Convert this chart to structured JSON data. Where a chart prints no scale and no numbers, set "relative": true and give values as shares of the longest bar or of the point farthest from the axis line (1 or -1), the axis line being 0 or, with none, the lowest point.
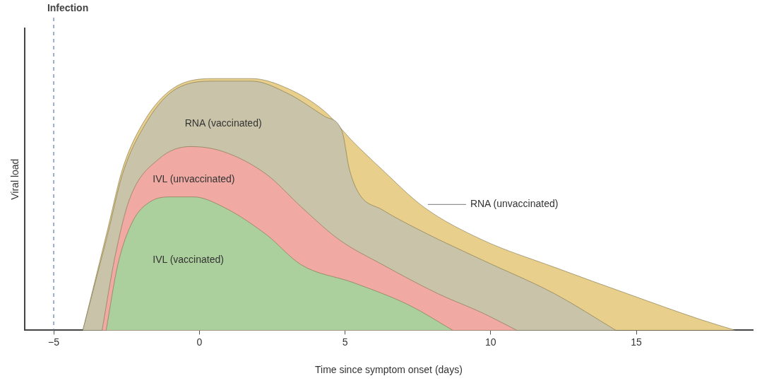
{
  "chart_data": {
    "type": "area",
    "xlabel": "Time since symptom onset (days)",
    "ylabel": "Viral load",
    "relative": true,
    "xlim": [
      -6,
      19
    ],
    "xticks": [
      -5,
      0,
      5,
      10,
      15
    ],
    "grid": false,
    "legend": false,
    "marker": "none",
    "ref_lines": [
      {
        "axis": "x",
        "value": -5,
        "label": "Infection",
        "color": "#5b7fb8",
        "line_style": "dashed"
      }
    ],
    "series": [
      {
        "name": "RNA (unvaccinated)",
        "color": "#e9cf8c",
        "x": [
          -4,
          -3.13,
          -2.64,
          -1.9,
          -0.92,
          0.57,
          1.8,
          3.05,
          4.3,
          5.27,
          6.26,
          7.7,
          9.7,
          12.2,
          14.7,
          17.2,
          18.4
        ],
        "values": [
          0,
          0.41,
          0.64,
          0.83,
          0.96,
          1,
          1,
          0.96,
          0.87,
          0.75,
          0.64,
          0.49,
          0.36,
          0.25,
          0.145,
          0.043,
          0
        ]
      },
      {
        "name": "RNA (vaccinated)",
        "color": "#c9c4a9",
        "x": [
          -4,
          -3.13,
          -2.64,
          -1.9,
          -0.92,
          0.57,
          1.8,
          3.05,
          4.3,
          4.9,
          5.15,
          5.5,
          6.26,
          7.7,
          9.7,
          12.2,
          14.3
        ],
        "values": [
          0,
          0.39,
          0.62,
          0.81,
          0.95,
          0.99,
          0.99,
          0.94,
          0.85,
          0.79,
          0.64,
          0.54,
          0.48,
          0.39,
          0.28,
          0.145,
          0
        ]
      },
      {
        "name": "IVL (unvaccinated)",
        "color": "#f1aaa3",
        "x": [
          -3.34,
          -2.9,
          -2.4,
          -1.4,
          -0.3,
          0.82,
          2.3,
          3.5,
          4.8,
          6.3,
          8.2,
          9.7,
          10.9
        ],
        "values": [
          0,
          0.29,
          0.52,
          0.68,
          0.73,
          0.71,
          0.62,
          0.49,
          0.36,
          0.26,
          0.145,
          0.07,
          0
        ]
      },
      {
        "name": "IVL (vaccinated)",
        "color": "#abd09d",
        "x": [
          -3.2,
          -2.8,
          -2.3,
          -1.7,
          -0.92,
          -0.2,
          0.82,
          2.3,
          3.5,
          5.27,
          7.2,
          8.7
        ],
        "values": [
          0,
          0.26,
          0.43,
          0.51,
          0.53,
          0.53,
          0.49,
          0.38,
          0.26,
          0.19,
          0.1,
          0
        ]
      }
    ]
  }
}
